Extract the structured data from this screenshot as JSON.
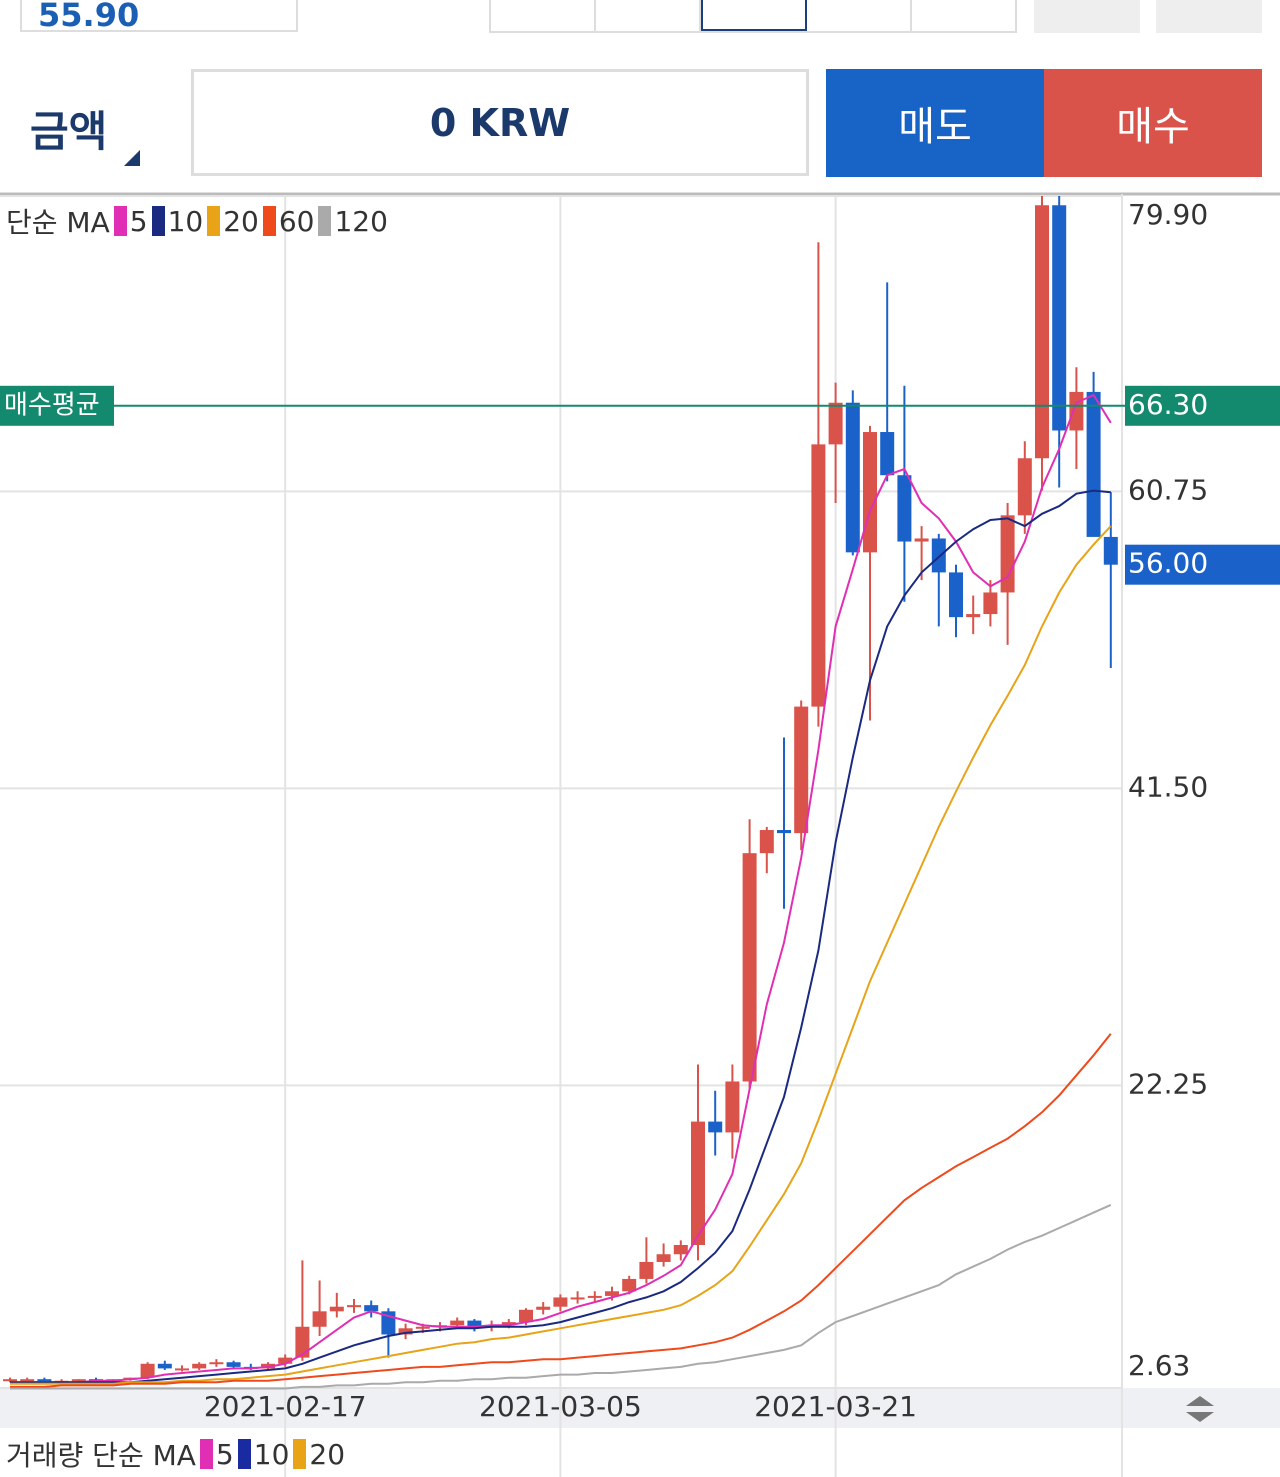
{
  "order_panel": {
    "price": "55.90",
    "amount_label": "금액",
    "amount": "0 KRW",
    "sell": "매도",
    "buy": "매수"
  },
  "chart_data": {
    "type": "candlestick",
    "ma_label": "단순 MA",
    "categories": [
      null,
      null,
      null,
      null,
      null,
      null,
      null,
      null,
      null,
      null,
      null,
      null,
      null,
      null,
      null,
      null,
      "2021-02-17",
      null,
      null,
      null,
      null,
      null,
      null,
      null,
      null,
      null,
      null,
      null,
      null,
      null,
      null,
      null,
      "2021-03-05",
      null,
      null,
      null,
      null,
      null,
      null,
      null,
      null,
      null,
      null,
      null,
      null,
      null,
      null,
      null,
      "2021-03-21",
      null,
      null,
      null,
      null,
      null,
      null,
      null,
      null,
      null,
      null,
      null,
      null,
      null,
      null,
      null,
      null
    ],
    "open": [
      3.1,
      3.2,
      3.2,
      3.1,
      3.1,
      3.2,
      3.1,
      3.2,
      3.3,
      4.2,
      3.9,
      3.9,
      4.2,
      4.3,
      4.0,
      3.9,
      4.2,
      4.6,
      6.6,
      7.6,
      7.9,
      8.0,
      7.6,
      6.1,
      6.5,
      6.6,
      6.7,
      7.0,
      6.6,
      6.7,
      6.9,
      7.7,
      7.9,
      8.5,
      8.5,
      8.6,
      8.9,
      9.7,
      10.8,
      11.3,
      11.9,
      19.9,
      19.2,
      22.5,
      37.3,
      38.8,
      38.6,
      46.8,
      63.8,
      66.5,
      56.8,
      64.6,
      61.8,
      57.5,
      57.7,
      55.5,
      52.6,
      52.8,
      54.2,
      59.2,
      62.9,
      79.3,
      64.7,
      67.2,
      57.8
    ],
    "high": [
      3.3,
      3.3,
      3.3,
      3.2,
      3.2,
      3.3,
      3.2,
      3.3,
      4.3,
      4.4,
      4.1,
      4.3,
      4.5,
      4.4,
      4.2,
      4.3,
      4.8,
      10.9,
      9.6,
      8.8,
      8.4,
      8.3,
      7.8,
      6.8,
      6.8,
      6.9,
      7.2,
      7.1,
      7.0,
      7.1,
      7.8,
      8.2,
      8.7,
      8.9,
      8.9,
      9.2,
      9.9,
      12.4,
      12.0,
      12.2,
      23.6,
      21.9,
      23.6,
      39.5,
      39.0,
      44.8,
      47.2,
      76.9,
      67.8,
      67.3,
      65.0,
      74.3,
      67.6,
      58.5,
      58.0,
      56.0,
      54.0,
      55.0,
      60.0,
      64.0,
      79.9,
      79.9,
      68.8,
      68.5,
      60.7
    ],
    "low": [
      3.0,
      3.1,
      3.1,
      3.0,
      3.0,
      3.1,
      3.0,
      3.1,
      3.2,
      3.8,
      3.7,
      3.8,
      4.0,
      3.9,
      3.8,
      3.8,
      4.0,
      4.4,
      6.0,
      7.2,
      7.5,
      7.2,
      4.6,
      5.8,
      6.2,
      6.3,
      6.5,
      6.3,
      6.3,
      6.5,
      6.7,
      7.4,
      7.6,
      8.1,
      8.2,
      8.3,
      8.7,
      9.4,
      10.5,
      10.9,
      10.9,
      17.7,
      17.5,
      22.0,
      36.0,
      33.7,
      37.5,
      45.5,
      60.0,
      56.6,
      45.9,
      61.4,
      53.6,
      55.0,
      52.0,
      51.3,
      51.5,
      52.0,
      50.8,
      58.0,
      60.8,
      61.0,
      62.2,
      58.0,
      49.3
    ],
    "close": [
      3.2,
      3.2,
      3.1,
      3.1,
      3.2,
      3.1,
      3.2,
      3.3,
      4.2,
      3.9,
      3.9,
      4.2,
      4.3,
      4.0,
      3.9,
      4.2,
      4.6,
      6.6,
      7.6,
      7.9,
      8.0,
      7.6,
      6.1,
      6.5,
      6.6,
      6.7,
      7.0,
      6.6,
      6.7,
      6.9,
      7.7,
      7.9,
      8.5,
      8.5,
      8.6,
      8.9,
      9.7,
      10.8,
      11.3,
      11.9,
      19.9,
      19.2,
      22.5,
      37.3,
      38.8,
      38.6,
      46.8,
      63.8,
      66.5,
      56.8,
      64.6,
      61.8,
      57.5,
      57.7,
      55.5,
      52.6,
      52.8,
      54.2,
      59.2,
      62.9,
      79.3,
      64.7,
      67.2,
      57.8,
      56.0
    ],
    "up_color": "#d9534a",
    "down_color": "#1a62c9",
    "series": [
      {
        "name": "5",
        "color": "#e02fb4",
        "values": [
          3.0,
          3.0,
          3.0,
          3.0,
          3.0,
          3.1,
          3.1,
          3.2,
          3.3,
          3.5,
          3.6,
          3.7,
          3.8,
          3.9,
          3.9,
          4.0,
          4.2,
          4.8,
          5.6,
          6.4,
          7.2,
          7.6,
          7.3,
          7.0,
          6.7,
          6.6,
          6.6,
          6.6,
          6.7,
          6.7,
          6.9,
          7.1,
          7.5,
          7.9,
          8.2,
          8.5,
          8.8,
          9.3,
          9.9,
          10.6,
          12.5,
          14.2,
          16.5,
          22.0,
          27.5,
          31.5,
          37.0,
          44.0,
          52.0,
          55.7,
          59.5,
          61.8,
          62.2,
          60.0,
          59.0,
          57.5,
          55.5,
          54.6,
          55.2,
          57.5,
          61.0,
          63.5,
          66.5,
          67.0,
          65.2
        ]
      },
      {
        "name": "10",
        "color": "#1a2a80",
        "values": [
          3.0,
          3.0,
          3.0,
          3.0,
          3.0,
          3.0,
          3.0,
          3.0,
          3.1,
          3.2,
          3.3,
          3.4,
          3.5,
          3.6,
          3.7,
          3.8,
          3.9,
          4.2,
          4.6,
          5.0,
          5.4,
          5.7,
          6.0,
          6.2,
          6.3,
          6.4,
          6.5,
          6.5,
          6.6,
          6.6,
          6.6,
          6.7,
          6.9,
          7.2,
          7.5,
          7.8,
          8.2,
          8.5,
          8.9,
          9.5,
          10.4,
          11.4,
          12.8,
          15.5,
          18.5,
          21.5,
          26.0,
          31.0,
          38.0,
          43.5,
          48.5,
          52.0,
          54.0,
          55.5,
          56.5,
          57.5,
          58.3,
          58.9,
          59.0,
          58.5,
          59.3,
          59.8,
          60.6,
          60.8,
          60.7
        ]
      },
      {
        "name": "20",
        "color": "#e8a317",
        "values": [
          2.9,
          2.9,
          2.9,
          2.9,
          2.9,
          2.9,
          2.9,
          3.0,
          3.0,
          3.0,
          3.1,
          3.1,
          3.2,
          3.2,
          3.3,
          3.4,
          3.5,
          3.7,
          3.9,
          4.1,
          4.3,
          4.5,
          4.7,
          4.9,
          5.1,
          5.3,
          5.5,
          5.6,
          5.8,
          5.9,
          6.1,
          6.3,
          6.5,
          6.7,
          6.9,
          7.1,
          7.3,
          7.5,
          7.7,
          8.0,
          8.6,
          9.3,
          10.2,
          11.8,
          13.5,
          15.2,
          17.2,
          20.0,
          23.0,
          26.0,
          29.0,
          31.5,
          34.0,
          36.5,
          39.0,
          41.3,
          43.5,
          45.6,
          47.5,
          49.5,
          52.0,
          54.2,
          56.0,
          57.3,
          58.5
        ]
      },
      {
        "name": "60",
        "color": "#ee4a1c",
        "values": [
          2.7,
          2.7,
          2.7,
          2.8,
          2.8,
          2.8,
          2.8,
          2.9,
          2.9,
          2.9,
          3.0,
          3.0,
          3.0,
          3.1,
          3.1,
          3.1,
          3.2,
          3.3,
          3.4,
          3.5,
          3.6,
          3.7,
          3.8,
          3.9,
          4.0,
          4.0,
          4.1,
          4.2,
          4.3,
          4.3,
          4.4,
          4.5,
          4.5,
          4.6,
          4.7,
          4.8,
          4.9,
          5.0,
          5.1,
          5.2,
          5.4,
          5.6,
          5.9,
          6.4,
          7.0,
          7.6,
          8.3,
          9.3,
          10.4,
          11.5,
          12.6,
          13.7,
          14.8,
          15.6,
          16.3,
          17.0,
          17.6,
          18.2,
          18.8,
          19.6,
          20.5,
          21.6,
          22.9,
          24.2,
          25.6
        ]
      },
      {
        "name": "120",
        "color": "#aaaaaa",
        "values": [
          2.6,
          2.6,
          2.6,
          2.6,
          2.6,
          2.6,
          2.6,
          2.6,
          2.6,
          2.6,
          2.6,
          2.6,
          2.6,
          2.6,
          2.6,
          2.6,
          2.6,
          2.7,
          2.7,
          2.8,
          2.8,
          2.9,
          2.9,
          3.0,
          3.0,
          3.1,
          3.1,
          3.2,
          3.2,
          3.3,
          3.3,
          3.4,
          3.5,
          3.5,
          3.6,
          3.6,
          3.7,
          3.8,
          3.9,
          4.0,
          4.2,
          4.3,
          4.5,
          4.7,
          4.9,
          5.1,
          5.4,
          6.2,
          6.9,
          7.3,
          7.7,
          8.1,
          8.5,
          8.9,
          9.3,
          10.0,
          10.5,
          11.0,
          11.6,
          12.1,
          12.5,
          13.0,
          13.5,
          14.0,
          14.5
        ]
      }
    ],
    "ylim": [
      2.63,
      79.9
    ],
    "yticks": [
      {
        "value": 79.9,
        "label": "79.90"
      },
      60.75,
      {
        "value": 41.5,
        "label": "41.50"
      },
      22.25,
      2.63
    ],
    "grid": true,
    "avg_buy": {
      "label": "매수평균",
      "price": {
        "value": 66.3,
        "label": "66.30"
      },
      "color": "#138a6e"
    },
    "current_price": {
      "value": 56,
      "label": "56.00"
    }
  },
  "volume_legend": {
    "label": "거래량 단순 MA",
    "series": [
      {
        "name": "5",
        "color": "#e02fb4"
      },
      {
        "name": "10",
        "color": "#1a2aa0"
      },
      {
        "name": "20",
        "color": "#e8a317"
      }
    ]
  }
}
